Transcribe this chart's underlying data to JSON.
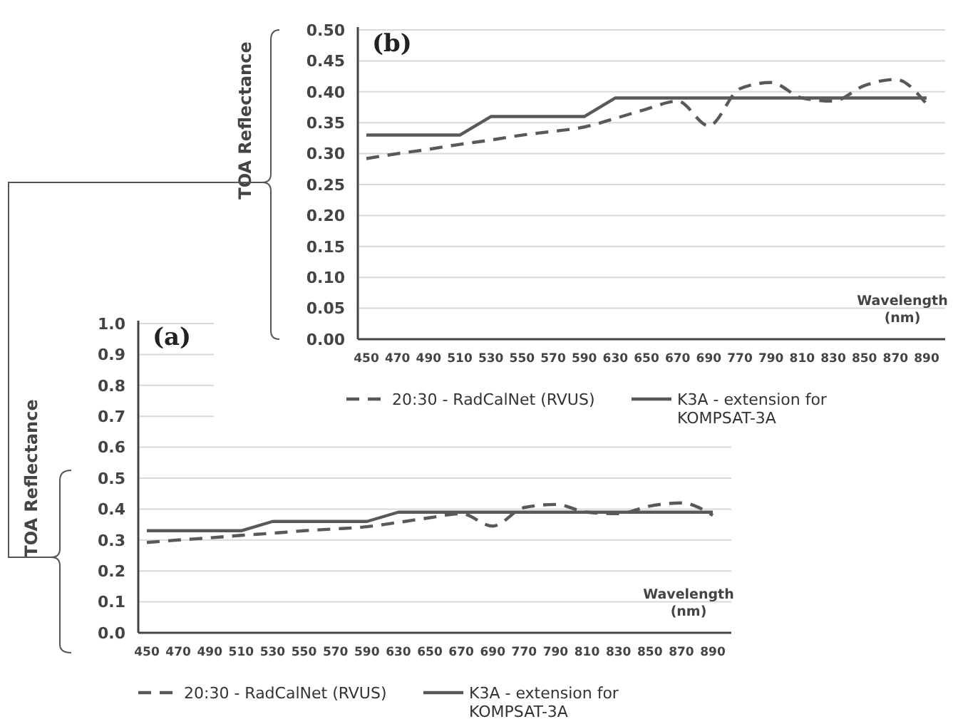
{
  "chart_data": [
    {
      "type": "line",
      "title": "(b)",
      "ylabel": "TOA Reflectance",
      "xlabel": "Wavelength (nm)",
      "categories": [
        "450",
        "470",
        "490",
        "510",
        "530",
        "550",
        "570",
        "590",
        "630",
        "650",
        "670",
        "690",
        "770",
        "790",
        "810",
        "830",
        "850",
        "870",
        "890"
      ],
      "series": [
        {
          "name": "20:30 - RadCalNet (RVUS)",
          "color": "#595959",
          "line_style": "dashed",
          "values": [
            0.292,
            0.3,
            0.307,
            0.315,
            0.322,
            0.33,
            0.336,
            0.343,
            0.357,
            0.372,
            0.385,
            0.345,
            0.405,
            0.415,
            0.39,
            0.385,
            0.41,
            0.42,
            0.38
          ]
        },
        {
          "name": "K3A - extension for KOMPSAT-3A",
          "color": "#595959",
          "line_style": "solid",
          "values": [
            0.33,
            0.33,
            0.33,
            0.33,
            0.36,
            0.36,
            0.36,
            0.36,
            0.39,
            0.39,
            0.39,
            0.39,
            0.39,
            0.39,
            0.39,
            0.39,
            0.39,
            0.39,
            0.39
          ]
        }
      ],
      "ylim": [
        0,
        0.5
      ],
      "yticks": [
        {
          "value": 0,
          "label": "0.00"
        },
        {
          "value": 0.05,
          "label": "0.05"
        },
        {
          "value": 0.1,
          "label": "0.10"
        },
        {
          "value": 0.15,
          "label": "0.15"
        },
        {
          "value": 0.2,
          "label": "0.20"
        },
        {
          "value": 0.25,
          "label": "0.25"
        },
        {
          "value": 0.3,
          "label": "0.30"
        },
        {
          "value": 0.35,
          "label": "0.35"
        },
        {
          "value": 0.4,
          "label": "0.40"
        },
        {
          "value": 0.45,
          "label": "0.45"
        },
        {
          "value": 0.5,
          "label": "0.50"
        }
      ],
      "grid": "y",
      "legend": "bottom",
      "marker": "none"
    },
    {
      "type": "line",
      "title": "(a)",
      "ylabel": "TOA Reflectance",
      "xlabel": "Wavelength (nm)",
      "categories": [
        "450",
        "470",
        "490",
        "510",
        "530",
        "550",
        "570",
        "590",
        "630",
        "650",
        "670",
        "690",
        "770",
        "790",
        "810",
        "830",
        "850",
        "870",
        "890"
      ],
      "series": [
        {
          "name": "20:30 - RadCalNet (RVUS)",
          "color": "#595959",
          "line_style": "dashed",
          "values": [
            0.292,
            0.3,
            0.307,
            0.315,
            0.322,
            0.33,
            0.336,
            0.343,
            0.357,
            0.372,
            0.385,
            0.345,
            0.405,
            0.415,
            0.39,
            0.385,
            0.41,
            0.42,
            0.38
          ]
        },
        {
          "name": "K3A - extension for KOMPSAT-3A",
          "color": "#595959",
          "line_style": "solid",
          "values": [
            0.33,
            0.33,
            0.33,
            0.33,
            0.36,
            0.36,
            0.36,
            0.36,
            0.39,
            0.39,
            0.39,
            0.39,
            0.39,
            0.39,
            0.39,
            0.39,
            0.39,
            0.39,
            0.39
          ]
        }
      ],
      "ylim": [
        0,
        1
      ],
      "yticks": [
        {
          "value": 0,
          "label": "0.0"
        },
        {
          "value": 0.1,
          "label": "0.1"
        },
        {
          "value": 0.2,
          "label": "0.2"
        },
        {
          "value": 0.3,
          "label": "0.3"
        },
        {
          "value": 0.4,
          "label": "0.4"
        },
        {
          "value": 0.5,
          "label": "0.5"
        },
        {
          "value": 0.6,
          "label": "0.6"
        },
        {
          "value": 0.7,
          "label": "0.7"
        },
        {
          "value": 0.8,
          "label": "0.8"
        },
        {
          "value": 0.9,
          "label": "0.9"
        },
        {
          "value": 1,
          "label": "1.0"
        }
      ],
      "grid": "y",
      "legend": "bottom",
      "marker": "none"
    }
  ]
}
